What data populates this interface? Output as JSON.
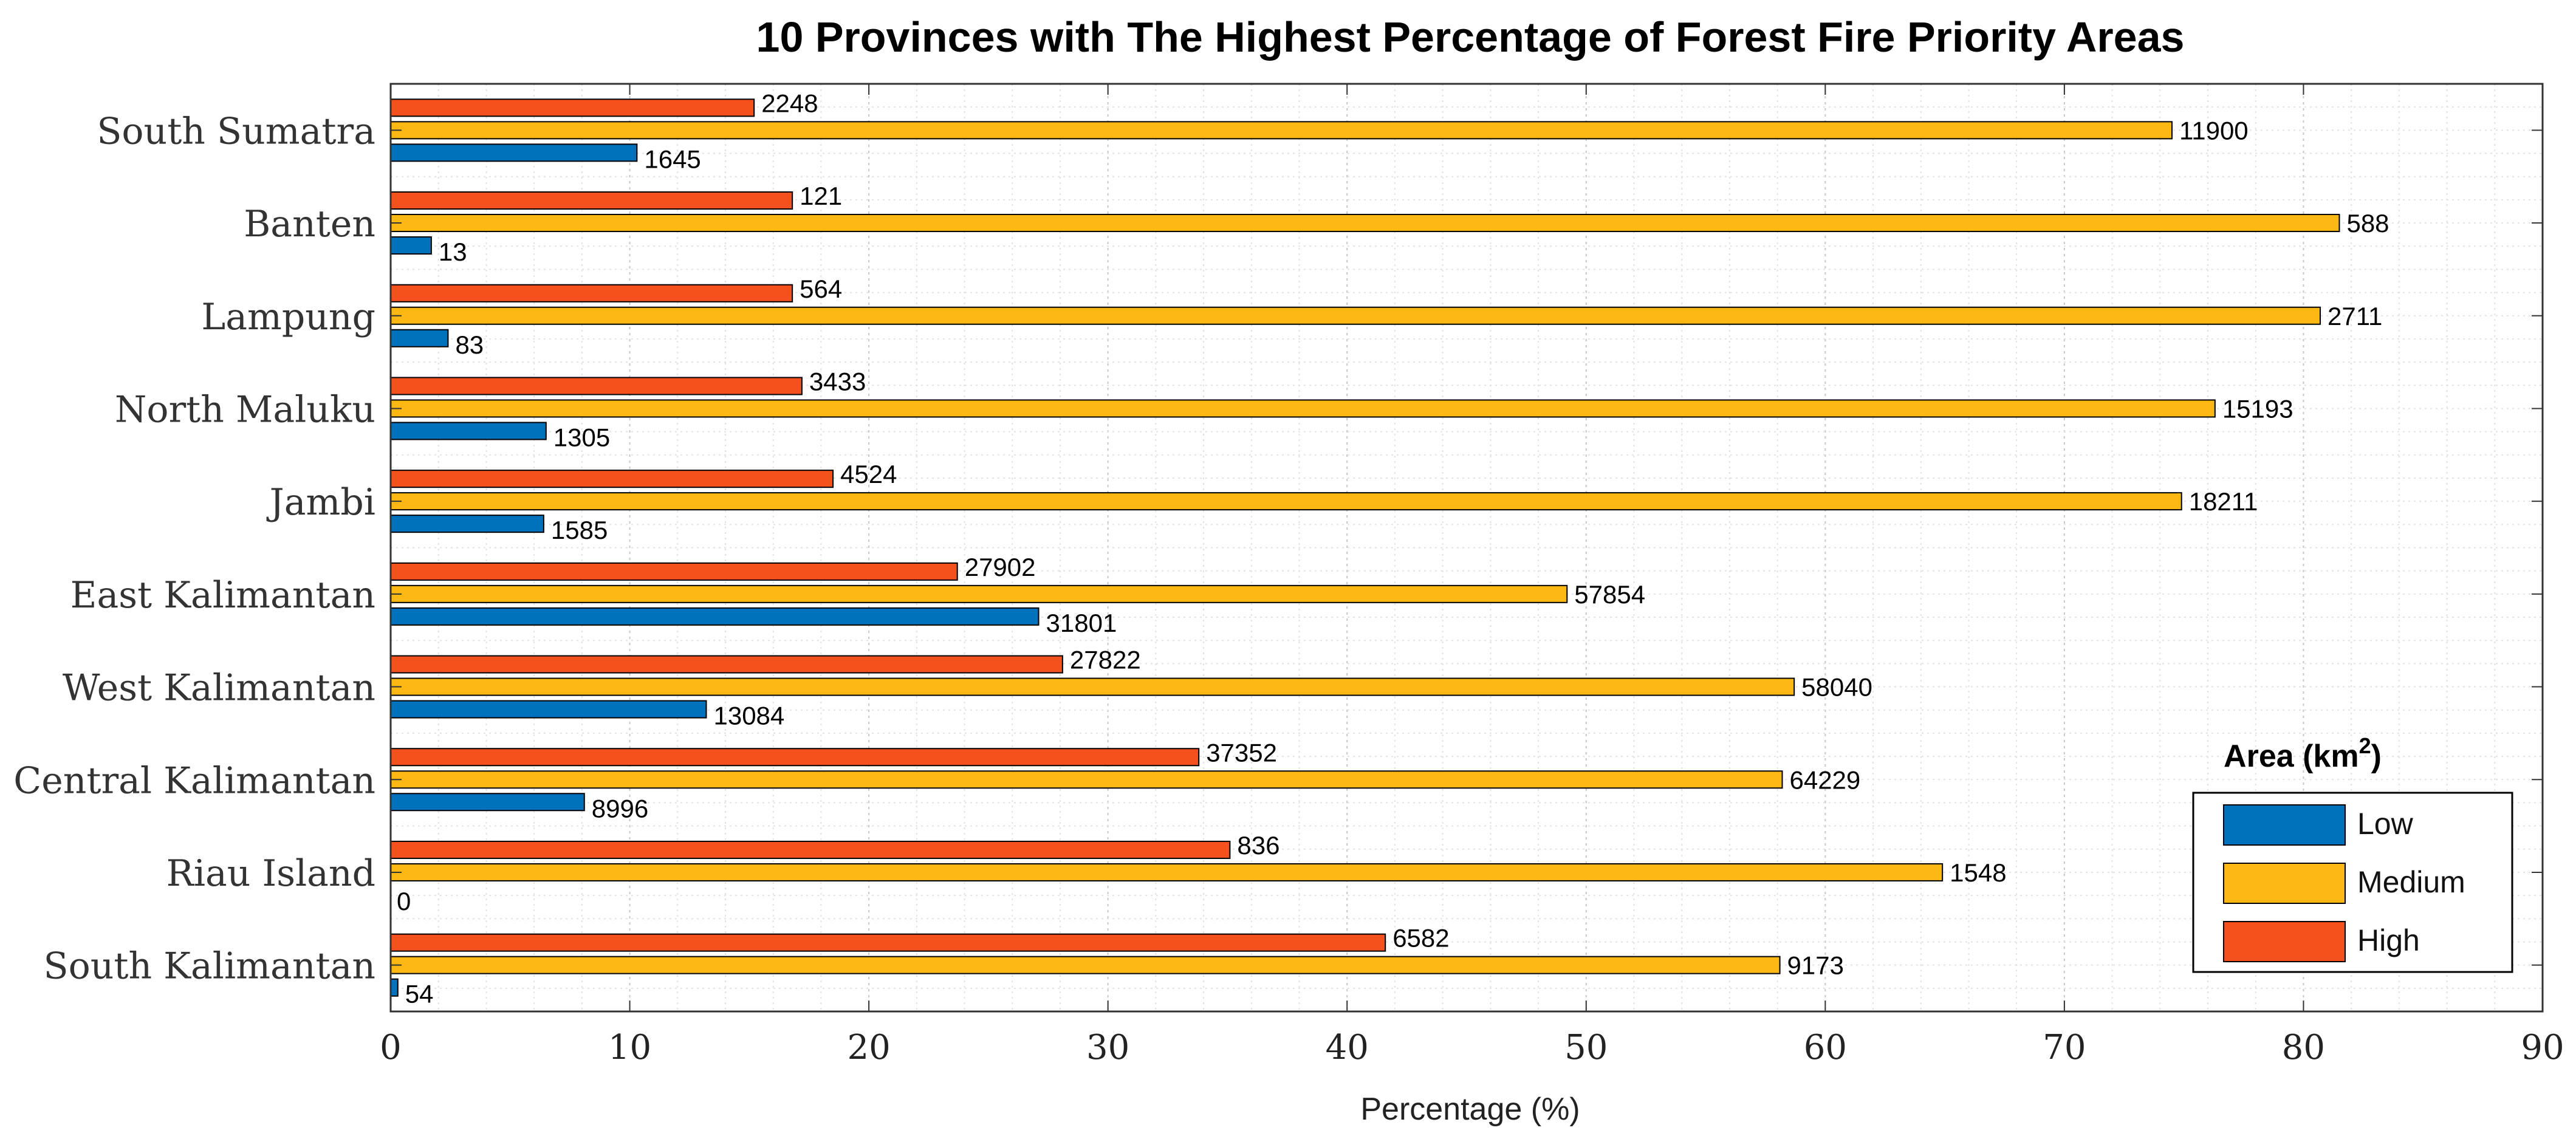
{
  "chart_data": {
    "type": "bar",
    "orientation": "horizontal",
    "title": "10 Provinces with The Highest Percentage of Forest Fire Priority Areas",
    "xlabel": "Percentage (%)",
    "ylabel": "",
    "xlim": [
      0,
      90
    ],
    "xticks": [
      0,
      10,
      20,
      30,
      40,
      50,
      60,
      70,
      80,
      90
    ],
    "grid": true,
    "legend_title": "Area (km",
    "legend_title_sup": "2",
    "legend_title_close": ")",
    "legend_position": "bottom-right",
    "categories": [
      "South Sumatra",
      "Banten",
      "Lampung",
      "North Maluku",
      "Jambi",
      "East Kalimantan",
      "West Kalimantan",
      "Central Kalimantan",
      "Riau Island",
      "South Kalimantan"
    ],
    "series": [
      {
        "name": "Low",
        "color": "#0072BD",
        "values": [
          10.3,
          1.7,
          2.4,
          6.5,
          6.4,
          27.1,
          13.2,
          8.1,
          0.0,
          0.3
        ],
        "labels": [
          "1645",
          "13",
          "83",
          "1305",
          "1585",
          "31801",
          "13084",
          "8996",
          "0",
          "54"
        ]
      },
      {
        "name": "Medium",
        "color": "#FDB813",
        "values": [
          74.5,
          81.5,
          80.7,
          76.3,
          74.9,
          49.2,
          58.7,
          58.2,
          64.9,
          58.1
        ],
        "labels": [
          "11900",
          "588",
          "2711",
          "15193",
          "18211",
          "57854",
          "58040",
          "64229",
          "1548",
          "9173"
        ]
      },
      {
        "name": "High",
        "color": "#F4511E",
        "values": [
          15.2,
          16.8,
          16.8,
          17.2,
          18.5,
          23.7,
          28.1,
          33.8,
          35.1,
          41.6
        ],
        "labels": [
          "2248",
          "121",
          "564",
          "3433",
          "4524",
          "27902",
          "27822",
          "37352",
          "836",
          "6582"
        ]
      }
    ]
  }
}
